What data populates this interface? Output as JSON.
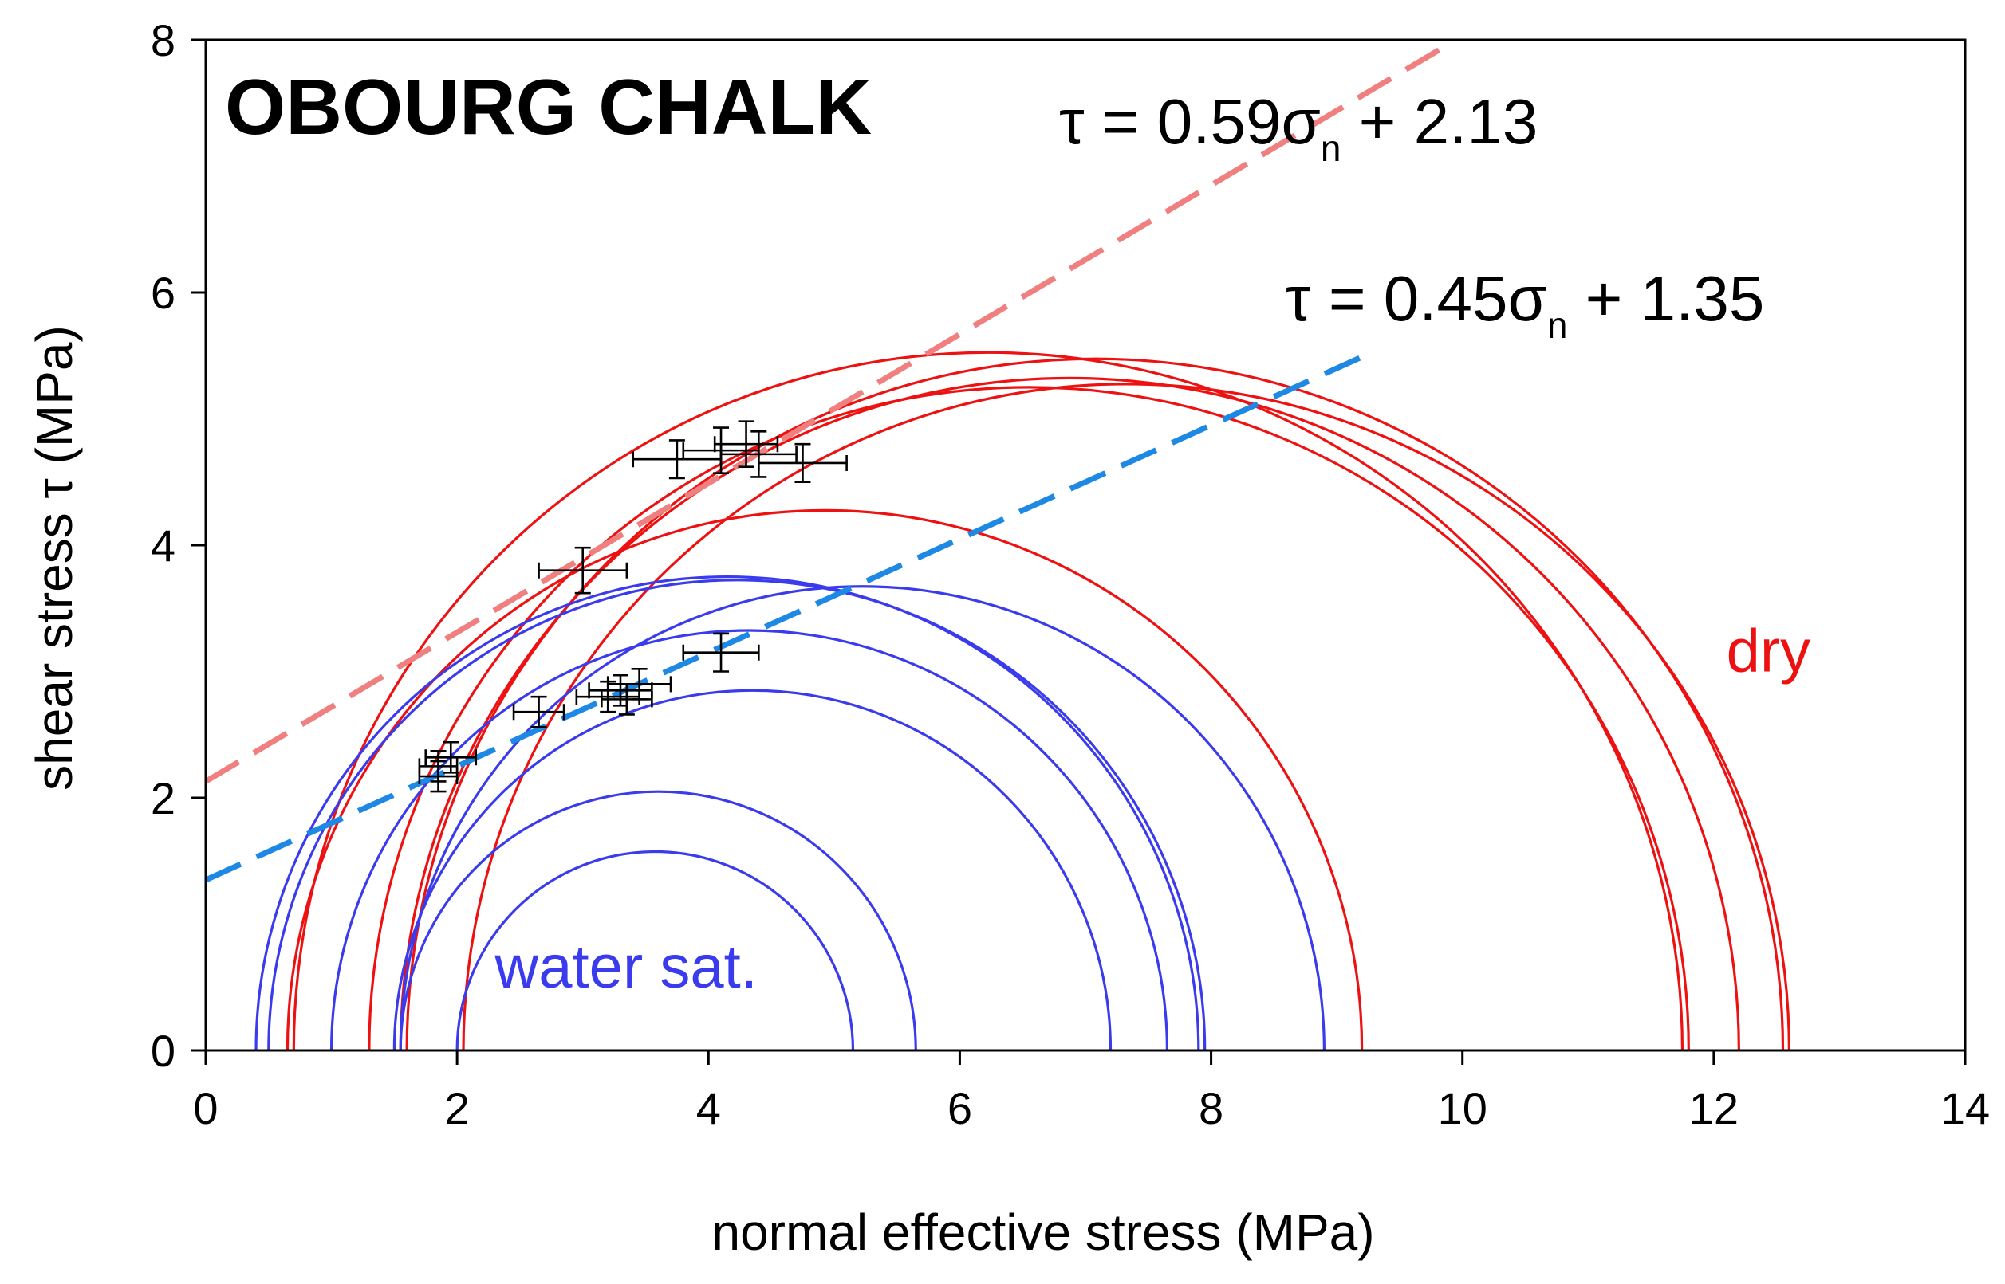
{
  "chart_data": {
    "type": "scatter",
    "title": "OBOURG CHALK",
    "xlabel": "normal effective stress (MPa)",
    "ylabel": "shear stress τ (MPa)",
    "xlim": [
      0,
      14
    ],
    "ylim": [
      0,
      8
    ],
    "xticks": [
      0,
      2,
      4,
      6,
      8,
      10,
      12,
      14
    ],
    "yticks": [
      0,
      2,
      4,
      6,
      8
    ],
    "fit_lines": [
      {
        "name": "dry envelope",
        "slope": 0.59,
        "intercept": 2.13,
        "color": "#f08080",
        "x_range": [
          0,
          9.9
        ],
        "equation": {
          "prefix": "τ = 0.59σ",
          "sub": "n",
          "suffix": " + 2.13"
        }
      },
      {
        "name": "water saturated envelope",
        "slope": 0.45,
        "intercept": 1.35,
        "color": "#1e88e5",
        "x_range": [
          0,
          9.2
        ],
        "equation": {
          "prefix": "τ = 0.45σ",
          "sub": "n",
          "suffix": " + 1.35"
        }
      }
    ],
    "series": [
      {
        "name": "dry",
        "color": "#ee1111",
        "circles": [
          {
            "s3": 0.65,
            "s1": 9.2
          },
          {
            "s3": 0.7,
            "s1": 11.75
          },
          {
            "s3": 1.3,
            "s1": 11.8
          },
          {
            "s3": 1.55,
            "s1": 12.2
          },
          {
            "s3": 1.6,
            "s1": 12.55
          },
          {
            "s3": 2.05,
            "s1": 12.6
          }
        ]
      },
      {
        "name": "water sat.",
        "color": "#3b3bee",
        "circles": [
          {
            "s3": 0.4,
            "s1": 7.9
          },
          {
            "s3": 0.5,
            "s1": 7.95
          },
          {
            "s3": 1.0,
            "s1": 7.65
          },
          {
            "s3": 1.5,
            "s1": 7.2
          },
          {
            "s3": 1.55,
            "s1": 5.65
          },
          {
            "s3": 2.0,
            "s1": 5.15
          },
          {
            "s3": 1.55,
            "s1": 8.9
          }
        ]
      }
    ],
    "data_points": [
      {
        "x": 1.85,
        "y": 2.17,
        "xerr": 0.15,
        "yerr": 0.12
      },
      {
        "x": 1.85,
        "y": 2.25,
        "xerr": 0.15,
        "yerr": 0.12
      },
      {
        "x": 1.95,
        "y": 2.32,
        "xerr": 0.2,
        "yerr": 0.12
      },
      {
        "x": 2.65,
        "y": 2.68,
        "xerr": 0.2,
        "yerr": 0.12
      },
      {
        "x": 3.2,
        "y": 2.8,
        "xerr": 0.25,
        "yerr": 0.12
      },
      {
        "x": 3.3,
        "y": 2.85,
        "xerr": 0.25,
        "yerr": 0.12
      },
      {
        "x": 3.45,
        "y": 2.9,
        "xerr": 0.25,
        "yerr": 0.12
      },
      {
        "x": 3.35,
        "y": 2.78,
        "xerr": 0.2,
        "yerr": 0.12
      },
      {
        "x": 4.1,
        "y": 3.15,
        "xerr": 0.3,
        "yerr": 0.15
      },
      {
        "x": 3.0,
        "y": 3.8,
        "xerr": 0.35,
        "yerr": 0.18
      },
      {
        "x": 3.75,
        "y": 4.68,
        "xerr": 0.35,
        "yerr": 0.15
      },
      {
        "x": 4.1,
        "y": 4.75,
        "xerr": 0.3,
        "yerr": 0.18
      },
      {
        "x": 4.3,
        "y": 4.8,
        "xerr": 0.25,
        "yerr": 0.18
      },
      {
        "x": 4.4,
        "y": 4.72,
        "xerr": 0.3,
        "yerr": 0.18
      },
      {
        "x": 4.75,
        "y": 4.65,
        "xerr": 0.35,
        "yerr": 0.15
      }
    ],
    "annotations": [
      {
        "text": "dry",
        "x": 12.1,
        "y": 3.0,
        "color": "#ee1111"
      },
      {
        "text": "water sat.",
        "x": 2.3,
        "y": 0.5,
        "color": "#3b3bee"
      }
    ]
  }
}
